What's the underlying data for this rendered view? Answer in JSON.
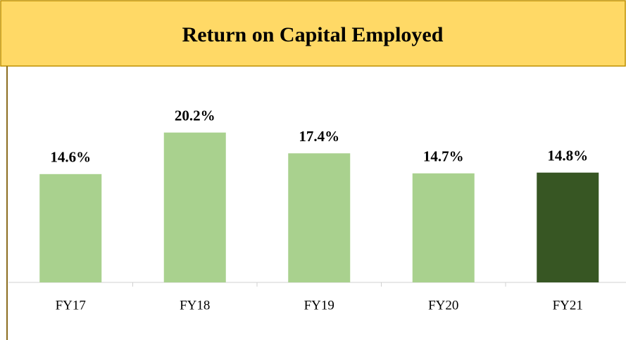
{
  "chart_data": {
    "type": "bar",
    "title": "Return on Capital Employed",
    "categories": [
      "FY17",
      "FY18",
      "FY19",
      "FY20",
      "FY21"
    ],
    "values": [
      14.6,
      20.2,
      17.4,
      14.7,
      14.8
    ],
    "value_labels": [
      "14.6%",
      "20.2%",
      "17.4%",
      "14.7%",
      "14.8%"
    ],
    "colors": [
      "#a9d18e",
      "#a9d18e",
      "#a9d18e",
      "#a9d18e",
      "#375623"
    ],
    "ylim": [
      0,
      25
    ]
  }
}
